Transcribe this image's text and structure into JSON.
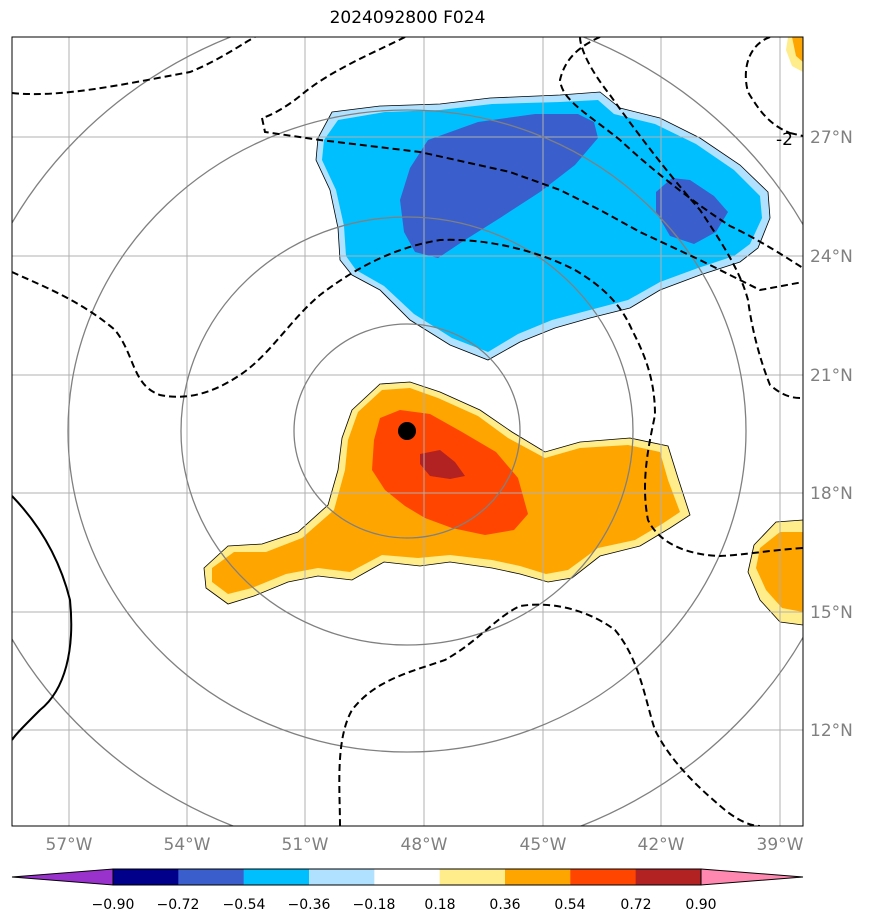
{
  "title": "2024092800 F024",
  "x_ticks": [
    "57°W",
    "54°W",
    "51°W",
    "48°W",
    "45°W",
    "42°W",
    "39°W"
  ],
  "y_ticks": [
    "27°N",
    "24°N",
    "21°N",
    "18°N",
    "15°N",
    "12°N"
  ],
  "contour_label": "-2",
  "colorbar": {
    "labels": [
      "−0.90",
      "−0.72",
      "−0.54",
      "−0.36",
      "−0.18",
      "0.18",
      "0.36",
      "0.54",
      "0.72",
      "0.90"
    ],
    "colors": [
      "#9932cc",
      "#00008b",
      "#3a5fcd",
      "#00bfff",
      "#b0e2ff",
      "#ffffff",
      "#ffec8b",
      "#ffa500",
      "#ff4500",
      "#b22222",
      "#ff88b0"
    ]
  },
  "colors": {
    "grid": "#b0b0b0",
    "circles": "#808080",
    "center_marker": "#000000"
  }
}
